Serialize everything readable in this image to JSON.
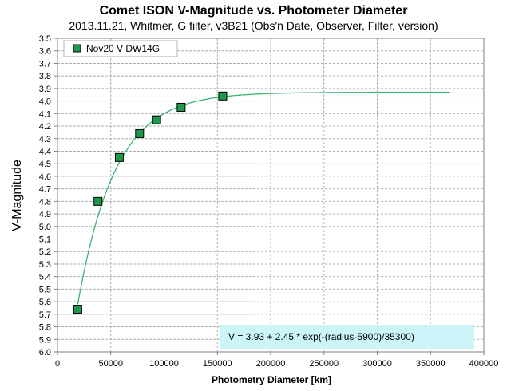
{
  "chart_data": {
    "type": "scatter",
    "title": "Comet ISON V-Magnitude vs. Photometer Diameter",
    "subtitle": "2013.11.21,  Whitmer, G filter, v3B21 (Obs'n Date, Observer, Filter, version)",
    "xlabel": "Photometry Diameter  [km]",
    "ylabel": "V-Magnitude",
    "xlim": [
      0,
      400000
    ],
    "ylim": [
      3.5,
      6.0
    ],
    "y_inverted": true,
    "x_ticks": [
      0,
      50000,
      100000,
      150000,
      200000,
      250000,
      300000,
      350000,
      400000
    ],
    "y_ticks": [
      3.5,
      3.6,
      3.7,
      3.8,
      3.9,
      4.0,
      4.1,
      4.2,
      4.3,
      4.4,
      4.5,
      4.6,
      4.7,
      4.8,
      4.9,
      5.0,
      5.1,
      5.2,
      5.3,
      5.4,
      5.5,
      5.6,
      5.7,
      5.8,
      5.9,
      6.0
    ],
    "grid": true,
    "legend_position": "top-left",
    "series": [
      {
        "name": "Nov20 V DW14G",
        "marker": "square",
        "color": "#1a9a4a",
        "x": [
          19000,
          38000,
          58000,
          77000,
          93000,
          116000,
          155000
        ],
        "y": [
          5.66,
          4.8,
          4.45,
          4.26,
          4.15,
          4.05,
          3.96
        ]
      }
    ],
    "fit": {
      "color": "#3cb371",
      "equation": "V = 3.93 + 2.45 * exp(-(radius-5900)/35300)",
      "x_range": [
        19000,
        368000
      ]
    }
  }
}
